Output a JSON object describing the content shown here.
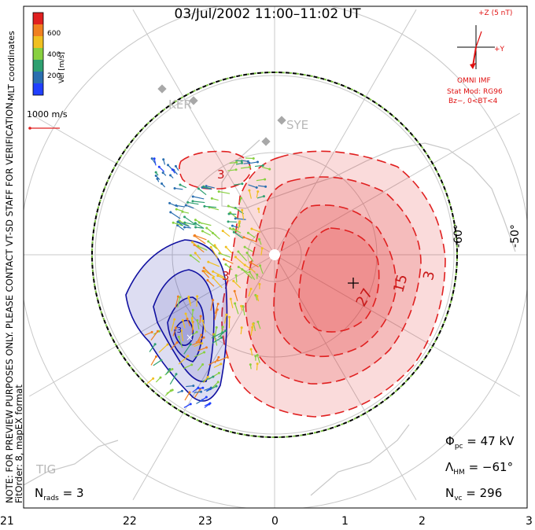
{
  "title": "03/Jul/2002 11:00–11:02 UT",
  "notes": {
    "line1": "NOTE: FOR PREVIEW PURPOSES ONLY. PLEASE CONTACT VT-SD STAFF FOR VERIFICATION.",
    "line2": "FitOrder: 8, mapEX format"
  },
  "legend": {
    "coord_label": "MLT coordinates",
    "unit_label": "Vel [m/s]",
    "tick_labels": [
      "200",
      "400",
      "600"
    ],
    "colors": [
      "#2040ff",
      "#2a6fb0",
      "#2ea070",
      "#88d040",
      "#f0c020",
      "#f08020",
      "#e02020"
    ],
    "scale_label": "1000 m/s",
    "scale_color": "#e02020"
  },
  "imf": {
    "scale_label": "+Z (5 nT)",
    "y_label": "+Y",
    "source_label": "OMNI IMF",
    "model_line1": "Stat Mod: RG96",
    "model_line2": "Bz−, 0<BT<4",
    "color": "#e01010"
  },
  "stations": [
    "KER",
    "SYE",
    "TIG"
  ],
  "stats": {
    "phi_pc": {
      "symbol": "Φ",
      "sub": "pc",
      "value": "= 47 kV"
    },
    "lambda_hm": {
      "symbol": "Λ",
      "sub": "HM",
      "value": "= −61°"
    },
    "n_vc": {
      "symbol": "N",
      "sub": "vc",
      "value": "= 296"
    },
    "n_rads": {
      "symbol": "N",
      "sub": "rads",
      "value": "= 3"
    }
  },
  "chart_data": {
    "type": "polar-convection-map",
    "x_ticks": [
      "21",
      "22",
      "23",
      "0",
      "1",
      "2",
      "3"
    ],
    "lat_labels": [
      "-60°",
      "-50°"
    ],
    "contour_labels": [
      "3",
      "15",
      "27",
      "-3"
    ],
    "hmb_latitude_deg": -61,
    "cross_polar_cap_potential_kV": 47,
    "vector_count": 296,
    "radar_count": 3,
    "positive_cell_color": "#e02020",
    "negative_cell_color": "#1010a0"
  }
}
